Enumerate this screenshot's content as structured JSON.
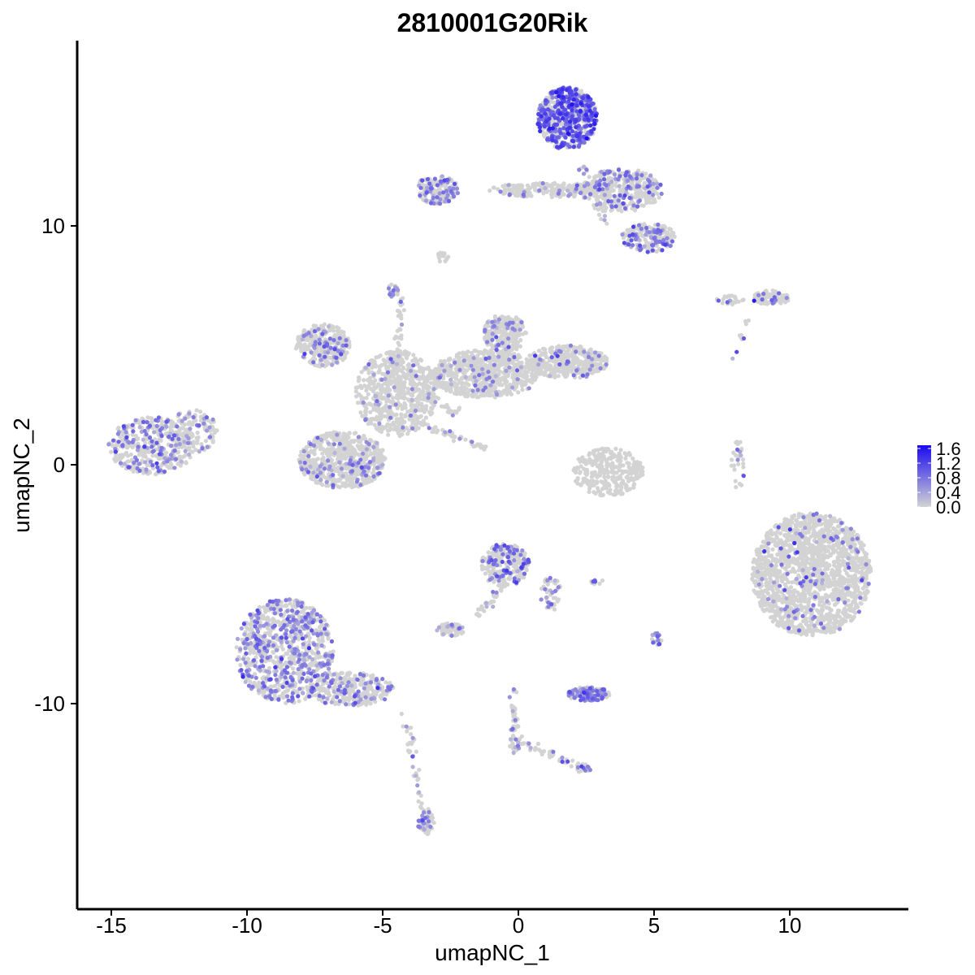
{
  "chart_data": {
    "type": "scatter",
    "title": "2810001G20Rik",
    "xlabel": "umapNC_1",
    "ylabel": "umapNC_2",
    "xlim": [
      -16.5,
      14.5
    ],
    "ylim": [
      -18.5,
      17.5
    ],
    "x_ticks": [
      -15,
      -10,
      -5,
      0,
      5,
      10
    ],
    "x_tick_labels": [
      "-15",
      "-10",
      "-5",
      "0",
      "5",
      "10"
    ],
    "y_ticks": [
      -10,
      0,
      10
    ],
    "y_tick_labels": [
      "-10",
      "0",
      "10"
    ],
    "grid": false,
    "legend": {
      "placement": "right",
      "type": "colorbar",
      "min": 0.0,
      "max": 1.6,
      "ticks": [
        0.0,
        0.4,
        0.8,
        1.2,
        1.6
      ],
      "tick_labels": [
        "0.0",
        "0.4",
        "0.8",
        "1.2",
        "1.6"
      ],
      "low_color": "#d3d3d3",
      "high_color": "#1a0af0"
    },
    "clusters": [
      {
        "cx": -13.5,
        "cy": 0.8,
        "rx": 1.6,
        "ry": 1.2,
        "n": 420,
        "expr_frac": 0.28,
        "expr_mean": 0.6
      },
      {
        "cx": -12.0,
        "cy": 1.4,
        "rx": 0.9,
        "ry": 0.9,
        "n": 140,
        "expr_frac": 0.15,
        "expr_mean": 0.5
      },
      {
        "cx": -6.5,
        "cy": 0.2,
        "rx": 1.6,
        "ry": 1.2,
        "n": 650,
        "expr_frac": 0.12,
        "expr_mean": 0.55
      },
      {
        "cx": -7.2,
        "cy": 5.0,
        "rx": 1.0,
        "ry": 0.9,
        "n": 320,
        "expr_frac": 0.18,
        "expr_mean": 0.6
      },
      {
        "cx": -4.5,
        "cy": 3.0,
        "rx": 1.5,
        "ry": 1.8,
        "n": 650,
        "expr_frac": 0.05,
        "expr_mean": 0.5
      },
      {
        "cx": -1.2,
        "cy": 3.8,
        "rx": 2.0,
        "ry": 1.0,
        "n": 700,
        "expr_frac": 0.06,
        "expr_mean": 0.5
      },
      {
        "cx": -0.5,
        "cy": 5.5,
        "rx": 0.8,
        "ry": 0.8,
        "n": 250,
        "expr_frac": 0.1,
        "expr_mean": 0.55
      },
      {
        "cx": 1.8,
        "cy": 4.3,
        "rx": 1.5,
        "ry": 0.7,
        "n": 420,
        "expr_frac": 0.06,
        "expr_mean": 0.55
      },
      {
        "cx": -4.6,
        "cy": 7.3,
        "rx": 0.2,
        "ry": 0.3,
        "n": 20,
        "expr_frac": 0.3,
        "expr_mean": 0.6
      },
      {
        "cx": 1.8,
        "cy": 14.5,
        "rx": 1.1,
        "ry": 1.3,
        "n": 650,
        "expr_frac": 0.55,
        "expr_mean": 0.95
      },
      {
        "cx": 3.8,
        "cy": 11.5,
        "rx": 1.5,
        "ry": 0.9,
        "n": 380,
        "expr_frac": 0.25,
        "expr_mean": 0.7
      },
      {
        "cx": 4.8,
        "cy": 9.5,
        "rx": 1.0,
        "ry": 0.6,
        "n": 200,
        "expr_frac": 0.3,
        "expr_mean": 0.7
      },
      {
        "cx": 1.2,
        "cy": 11.5,
        "rx": 2.3,
        "ry": 0.3,
        "n": 250,
        "expr_frac": 0.1,
        "expr_mean": 0.6
      },
      {
        "cx": -3.0,
        "cy": 11.5,
        "rx": 0.8,
        "ry": 0.6,
        "n": 170,
        "expr_frac": 0.3,
        "expr_mean": 0.65
      },
      {
        "cx": -2.8,
        "cy": 8.7,
        "rx": 0.3,
        "ry": 0.2,
        "n": 15,
        "expr_frac": 0.0,
        "expr_mean": 0.5
      },
      {
        "cx": 9.3,
        "cy": 7.0,
        "rx": 0.7,
        "ry": 0.3,
        "n": 90,
        "expr_frac": 0.2,
        "expr_mean": 0.8
      },
      {
        "cx": 7.8,
        "cy": 6.9,
        "rx": 0.5,
        "ry": 0.2,
        "n": 30,
        "expr_frac": 0.2,
        "expr_mean": 0.6
      },
      {
        "cx": 3.3,
        "cy": -0.3,
        "rx": 1.3,
        "ry": 1.0,
        "n": 300,
        "expr_frac": 0.0,
        "expr_mean": 0.5
      },
      {
        "cx": 8.1,
        "cy": 0.0,
        "rx": 0.25,
        "ry": 1.0,
        "n": 30,
        "expr_frac": 0.15,
        "expr_mean": 0.6
      },
      {
        "cx": 10.8,
        "cy": -4.6,
        "rx": 2.2,
        "ry": 2.6,
        "n": 1700,
        "expr_frac": 0.05,
        "expr_mean": 0.6
      },
      {
        "cx": -0.5,
        "cy": -4.2,
        "rx": 0.9,
        "ry": 0.9,
        "n": 280,
        "expr_frac": 0.25,
        "expr_mean": 0.8
      },
      {
        "cx": 1.2,
        "cy": -5.4,
        "rx": 0.4,
        "ry": 0.7,
        "n": 50,
        "expr_frac": 0.3,
        "expr_mean": 0.6
      },
      {
        "cx": -2.5,
        "cy": -6.9,
        "rx": 0.5,
        "ry": 0.3,
        "n": 70,
        "expr_frac": 0.25,
        "expr_mean": 0.55
      },
      {
        "cx": -8.6,
        "cy": -7.8,
        "rx": 1.8,
        "ry": 2.2,
        "n": 900,
        "expr_frac": 0.35,
        "expr_mean": 0.6
      },
      {
        "cx": -6.2,
        "cy": -9.4,
        "rx": 1.6,
        "ry": 0.7,
        "n": 320,
        "expr_frac": 0.18,
        "expr_mean": 0.6
      },
      {
        "cx": -3.4,
        "cy": -15.0,
        "rx": 0.3,
        "ry": 0.5,
        "n": 60,
        "expr_frac": 0.4,
        "expr_mean": 0.6
      },
      {
        "cx": 2.6,
        "cy": -9.6,
        "rx": 0.8,
        "ry": 0.3,
        "n": 140,
        "expr_frac": 0.5,
        "expr_mean": 0.6
      },
      {
        "cx": 5.1,
        "cy": -7.3,
        "rx": 0.2,
        "ry": 0.3,
        "n": 20,
        "expr_frac": 0.5,
        "expr_mean": 0.6
      },
      {
        "cx": 2.4,
        "cy": -12.7,
        "rx": 0.3,
        "ry": 0.2,
        "n": 20,
        "expr_frac": 0.2,
        "expr_mean": 0.55
      },
      {
        "cx": 2.9,
        "cy": -4.9,
        "rx": 0.25,
        "ry": 0.1,
        "n": 10,
        "expr_frac": 0.4,
        "expr_mean": 0.6
      },
      {
        "cx": -0.1,
        "cy": -11.5,
        "rx": 0.25,
        "ry": 0.6,
        "n": 25,
        "expr_frac": 0.25,
        "expr_mean": 0.55
      }
    ],
    "paths": [
      {
        "from": [
          -4.5,
          3.5
        ],
        "to": [
          -4.3,
          7.0
        ],
        "n": 45,
        "expr_frac": 0.1,
        "expr_mean": 0.5
      },
      {
        "from": [
          -3.8,
          1.8
        ],
        "to": [
          -1.2,
          0.7
        ],
        "n": 50,
        "expr_frac": 0.1,
        "expr_mean": 0.5
      },
      {
        "from": [
          -3.7,
          3.0
        ],
        "to": [
          -2.0,
          2.0
        ],
        "n": 30,
        "expr_frac": 0.1,
        "expr_mean": 0.5
      },
      {
        "from": [
          -3.5,
          -14.5
        ],
        "to": [
          -4.2,
          -10.5
        ],
        "n": 40,
        "expr_frac": 0.2,
        "expr_mean": 0.55
      },
      {
        "from": [
          -0.5,
          -5.0
        ],
        "to": [
          -1.6,
          -6.5
        ],
        "n": 30,
        "expr_frac": 0.2,
        "expr_mean": 0.55
      },
      {
        "from": [
          -0.2,
          -9.3
        ],
        "to": [
          -0.1,
          -12.0
        ],
        "n": 35,
        "expr_frac": 0.2,
        "expr_mean": 0.55
      },
      {
        "from": [
          0.0,
          -11.6
        ],
        "to": [
          2.3,
          -12.6
        ],
        "n": 40,
        "expr_frac": 0.15,
        "expr_mean": 0.55
      },
      {
        "from": [
          2.4,
          12.5
        ],
        "to": [
          3.2,
          10.2
        ],
        "n": 30,
        "expr_frac": 0.2,
        "expr_mean": 0.6
      },
      {
        "from": [
          8.4,
          6.0
        ],
        "to": [
          7.9,
          4.5
        ],
        "n": 10,
        "expr_frac": 0.2,
        "expr_mean": 0.6
      }
    ]
  }
}
